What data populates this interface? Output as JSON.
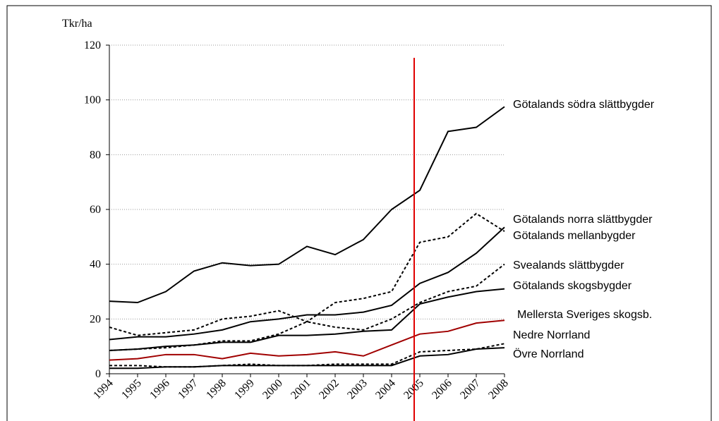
{
  "chart_data": {
    "type": "line",
    "y_unit_label": "Tkr/ha",
    "x": [
      1994,
      1995,
      1996,
      1997,
      1998,
      1999,
      2000,
      2001,
      2002,
      2003,
      2004,
      2005,
      2006,
      2007,
      2008
    ],
    "xlim": [
      1994,
      2008
    ],
    "xticks": [
      1994,
      1995,
      1996,
      1997,
      1998,
      1999,
      2000,
      2001,
      2002,
      2003,
      2004,
      2005,
      2006,
      2007,
      2008
    ],
    "ylim": [
      0,
      120
    ],
    "yticks": [
      0,
      20,
      40,
      60,
      80,
      100,
      120
    ],
    "grid": true,
    "marker_line": {
      "x": 2004.8,
      "color": "#e00000"
    },
    "series": [
      {
        "name": "Götalands södra slättbygder",
        "color": "#000000",
        "dashed": false,
        "values": [
          26.5,
          26,
          30,
          37.5,
          40.5,
          39.5,
          40,
          46.5,
          43.5,
          49,
          60,
          67,
          88.5,
          90,
          97.5
        ]
      },
      {
        "name": "Götalands norra slättbygder",
        "color": "#000000",
        "dashed": true,
        "values": [
          17,
          14,
          15,
          16,
          20,
          21,
          23,
          19,
          26,
          27.5,
          30,
          48,
          50,
          58.5,
          52
        ]
      },
      {
        "name": "Götalands mellanbygder",
        "color": "#000000",
        "dashed": false,
        "values": [
          12.5,
          13.5,
          13.5,
          14.5,
          16,
          19,
          20,
          21.5,
          21.5,
          22.5,
          25,
          33,
          37,
          44,
          53.5
        ]
      },
      {
        "name": "Svealands slättbygder",
        "color": "#000000",
        "dashed": true,
        "values": [
          8.5,
          9,
          9.5,
          10.5,
          12,
          12,
          14.5,
          19,
          17,
          16,
          20,
          26,
          30,
          32,
          40
        ]
      },
      {
        "name": "Götalands skogsbygder",
        "color": "#000000",
        "dashed": false,
        "values": [
          8.5,
          9,
          10,
          10.5,
          11.5,
          11.5,
          14,
          14,
          14.5,
          15.5,
          16,
          25.5,
          28,
          30,
          31
        ]
      },
      {
        "name": "Mellersta Sveriges skogsb.",
        "color": "#a00000",
        "dashed": false,
        "values": [
          5,
          5.5,
          7,
          7,
          5.5,
          7.5,
          6.5,
          7,
          8,
          6.5,
          10.5,
          14.5,
          15.5,
          18.5,
          19.5
        ]
      },
      {
        "name": "Nedre Norrland",
        "color": "#000000",
        "dashed": true,
        "values": [
          3,
          3,
          2.5,
          2.5,
          3,
          3.5,
          3,
          3,
          3.5,
          3.5,
          3.5,
          8,
          8.5,
          9,
          11
        ]
      },
      {
        "name": "Övre Norrland",
        "color": "#000000",
        "dashed": false,
        "values": [
          2,
          2,
          2.5,
          2.5,
          3,
          3,
          3,
          3,
          3,
          3,
          3,
          6.5,
          7,
          9,
          9.5
        ]
      }
    ]
  }
}
